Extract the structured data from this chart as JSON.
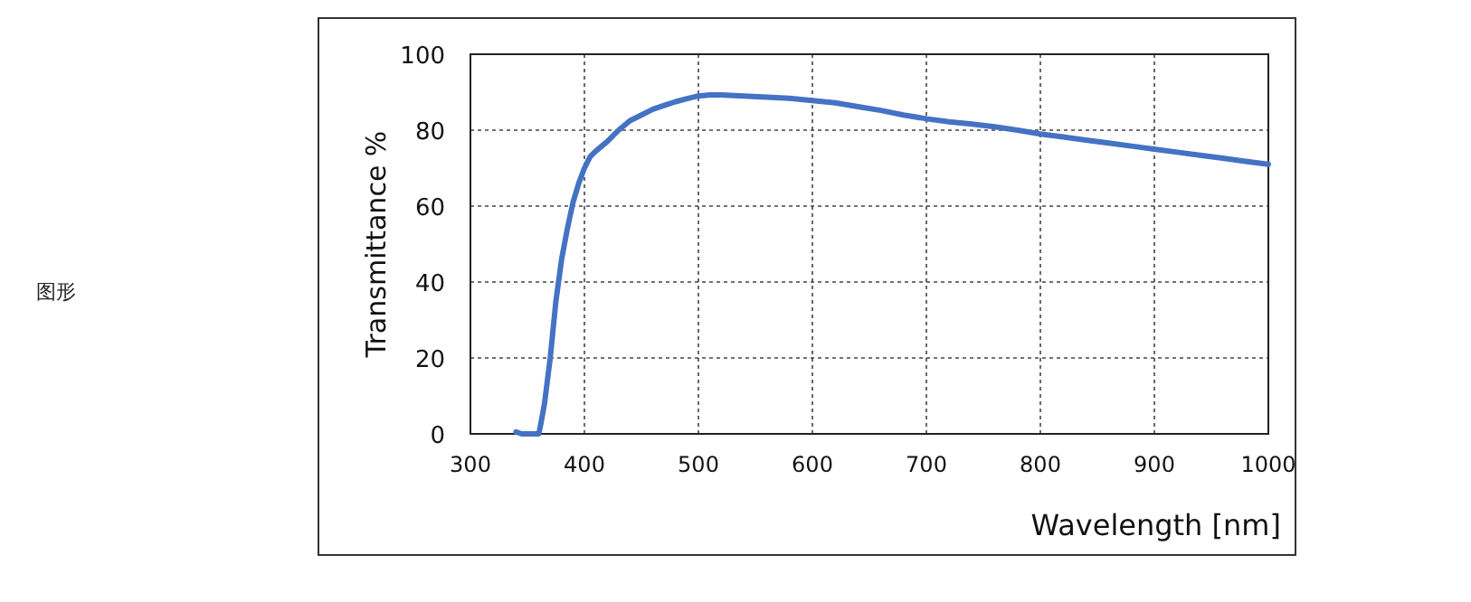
{
  "chart_data": {
    "type": "line",
    "xlabel": "Wavelength [nm]",
    "ylabel": "Transmittance %",
    "annotations": [
      "图形"
    ],
    "xlim": [
      300,
      1000
    ],
    "ylim": [
      0,
      100
    ],
    "xticks": [
      300,
      400,
      500,
      600,
      700,
      800,
      900,
      1000
    ],
    "yticks": [
      0,
      20,
      40,
      60,
      80,
      100
    ],
    "grid": true,
    "series": [
      {
        "color": "#4472c4",
        "x": [
          340,
          345,
          360,
          362,
          365,
          370,
          375,
          380,
          385,
          390,
          395,
          400,
          405,
          410,
          420,
          430,
          440,
          450,
          460,
          470,
          480,
          490,
          500,
          510,
          520,
          540,
          560,
          580,
          600,
          620,
          640,
          660,
          680,
          700,
          720,
          740,
          760,
          780,
          800,
          820,
          840,
          860,
          880,
          900,
          920,
          940,
          960,
          980,
          1000
        ],
        "values": [
          0.5,
          0,
          0,
          3,
          8,
          20,
          35,
          46,
          54,
          61,
          66,
          70,
          73,
          74.5,
          77,
          80,
          82.5,
          84,
          85.5,
          86.5,
          87.5,
          88.3,
          89,
          89.3,
          89.3,
          89,
          88.7,
          88.4,
          87.8,
          87.2,
          86.2,
          85.2,
          84,
          83,
          82.2,
          81.6,
          80.9,
          80,
          79,
          78.2,
          77.4,
          76.6,
          75.8,
          75,
          74.2,
          73.4,
          72.6,
          71.8,
          71
        ]
      }
    ]
  }
}
